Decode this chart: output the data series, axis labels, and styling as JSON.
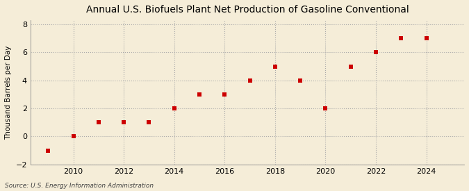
{
  "title": "Annual U.S. Biofuels Plant Net Production of Gasoline Conventional",
  "ylabel": "Thousand Barrels per Day",
  "source": "Source: U.S. Energy Information Administration",
  "years": [
    2009,
    2010,
    2011,
    2012,
    2013,
    2014,
    2015,
    2016,
    2017,
    2018,
    2019,
    2020,
    2021,
    2022,
    2023,
    2024
  ],
  "values": [
    -1,
    0,
    1,
    1,
    1,
    2,
    3,
    3,
    4,
    5,
    4,
    2,
    5,
    6,
    7,
    7
  ],
  "marker_color": "#cc0000",
  "marker": "s",
  "marker_size": 4,
  "xlim": [
    2008.3,
    2025.5
  ],
  "ylim": [
    -2,
    8.3
  ],
  "yticks": [
    -2,
    0,
    2,
    4,
    6,
    8
  ],
  "xticks": [
    2010,
    2012,
    2014,
    2016,
    2018,
    2020,
    2022,
    2024
  ],
  "background_color": "#f5edd8",
  "grid_color": "#aaaaaa",
  "title_fontsize": 10,
  "label_fontsize": 7.5,
  "tick_fontsize": 8,
  "source_fontsize": 6.5
}
